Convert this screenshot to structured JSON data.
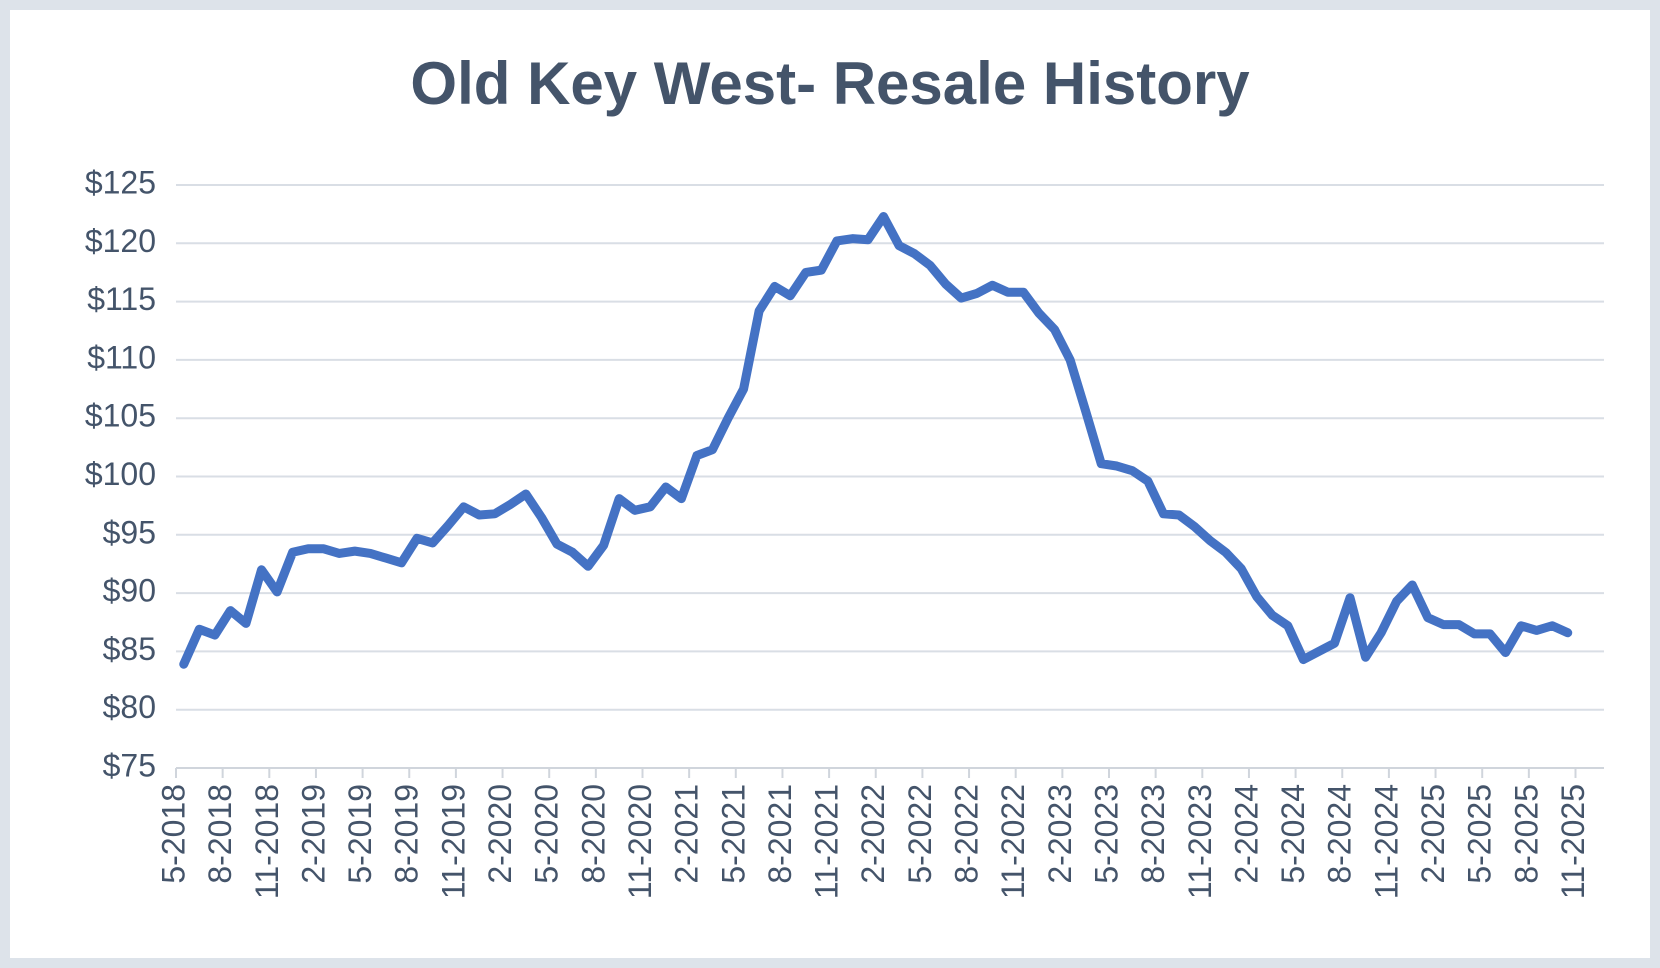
{
  "chart_data": {
    "type": "line",
    "title": "Old Key West- Resale History",
    "categories": [
      "5-2018",
      null,
      null,
      "8-2018",
      null,
      null,
      "11-2018",
      null,
      null,
      "2-2019",
      null,
      null,
      "5-2019",
      null,
      null,
      "8-2019",
      null,
      null,
      "11-2019",
      null,
      null,
      "2-2020",
      null,
      null,
      "5-2020",
      null,
      null,
      "8-2020",
      null,
      null,
      "11-2020",
      null,
      null,
      "2-2021",
      null,
      null,
      "5-2021",
      null,
      null,
      "8-2021",
      null,
      null,
      "11-2021",
      null,
      null,
      "2-2022",
      null,
      null,
      "5-2022",
      null,
      null,
      "8-2022",
      null,
      null,
      "11-2022",
      null,
      null,
      "2-2023",
      null,
      null,
      "5-2023",
      null,
      null,
      "8-2023",
      null,
      null,
      "11-2023",
      null,
      null,
      "2-2024",
      null,
      null,
      "5-2024",
      null,
      null,
      "8-2024",
      null,
      null,
      "11-2024",
      null,
      null,
      "2-2025",
      null,
      null,
      "5-2025",
      null,
      null,
      "8-2025",
      null,
      null,
      "11-2025"
    ],
    "series": [
      {
        "name": null,
        "color": "#4472c4",
        "values": [
          83.9,
          86.9,
          86.4,
          88.5,
          87.4,
          92.0,
          90.1,
          93.5,
          93.8,
          93.8,
          93.4,
          93.6,
          93.4,
          93.0,
          92.6,
          94.7,
          94.3,
          95.8,
          97.4,
          96.7,
          96.8,
          97.6,
          98.5,
          96.5,
          94.2,
          93.5,
          92.3,
          94.1,
          98.1,
          97.1,
          97.4,
          99.1,
          98.1,
          101.8,
          102.3,
          105.0,
          107.5,
          114.2,
          116.3,
          115.5,
          117.5,
          117.7,
          120.2,
          120.4,
          120.3,
          122.3,
          119.8,
          119.1,
          118.1,
          116.5,
          115.3,
          115.7,
          116.4,
          115.8,
          115.8,
          114.0,
          112.6,
          110.0,
          105.6,
          101.1,
          100.9,
          100.5,
          99.6,
          96.8,
          96.7,
          95.7,
          94.5,
          93.5,
          92.1,
          89.7,
          88.1,
          87.2,
          84.3,
          85.0,
          85.7,
          89.6,
          84.5,
          86.6,
          89.3,
          90.7,
          87.9,
          87.3,
          87.3,
          86.5,
          86.5,
          84.9,
          87.2,
          86.8,
          87.2,
          86.6,
          null
        ]
      }
    ],
    "ylim": [
      75,
      125
    ],
    "yticks": [
      {
        "value": 75,
        "label": "$75"
      },
      {
        "value": 80,
        "label": "$80"
      },
      {
        "value": 85,
        "label": "$85"
      },
      {
        "value": 90,
        "label": "$90"
      },
      {
        "value": 95,
        "label": "$95"
      },
      {
        "value": 100,
        "label": "$100"
      },
      {
        "value": 105,
        "label": "$105"
      },
      {
        "value": 110,
        "label": "$110"
      },
      {
        "value": 115,
        "label": "$115"
      },
      {
        "value": 120,
        "label": "$120"
      },
      {
        "value": 125,
        "label": "$125"
      }
    ],
    "grid": true
  }
}
